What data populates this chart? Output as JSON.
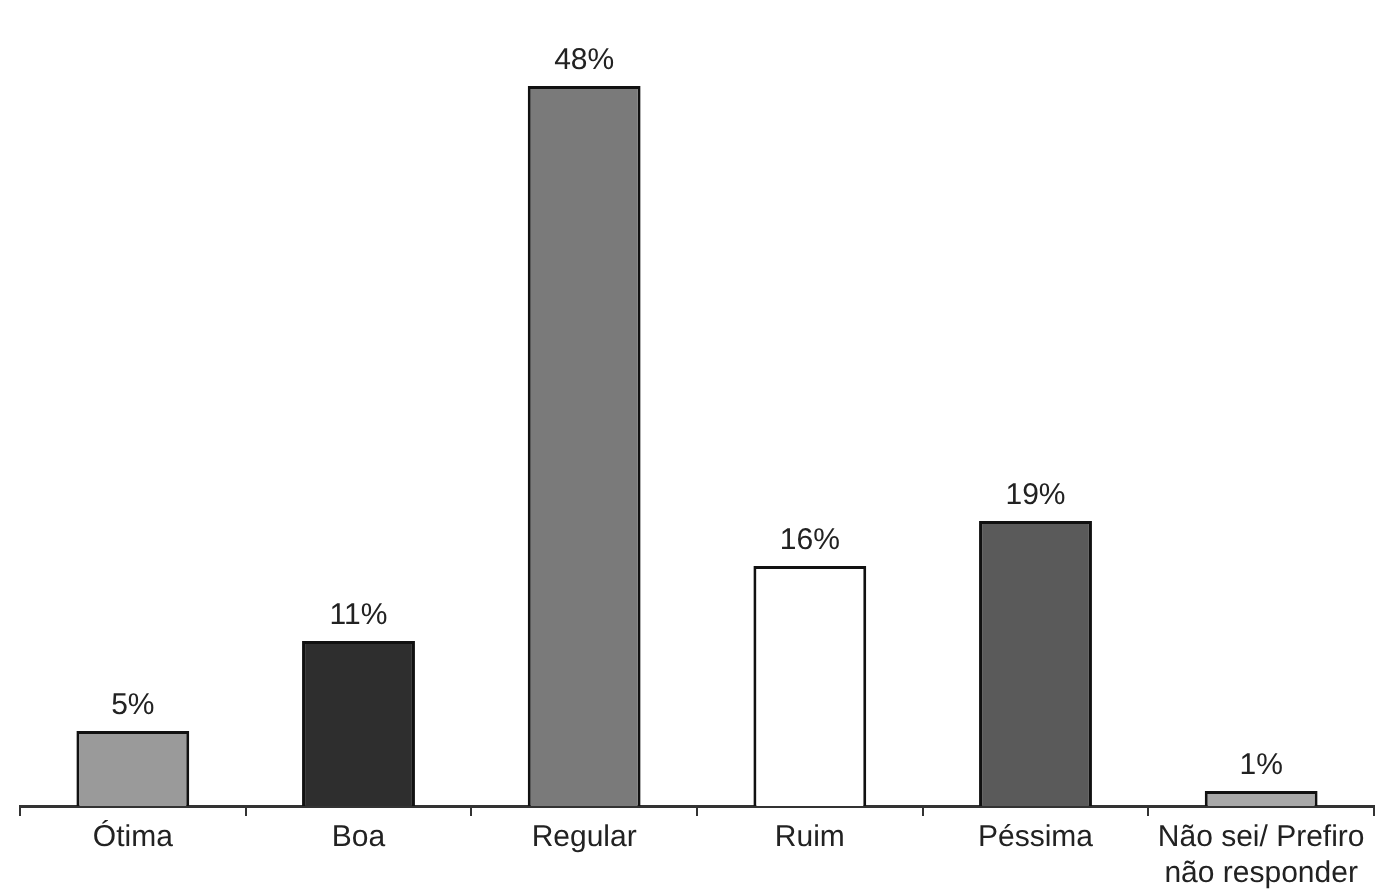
{
  "chart_data": {
    "type": "bar",
    "categories": [
      "Ótima",
      "Boa",
      "Regular",
      "Ruim",
      "Péssima",
      "Não sei/ Prefiro não responder"
    ],
    "values": [
      5,
      11,
      48,
      16,
      19,
      1
    ],
    "value_labels": [
      "5%",
      "11%",
      "48%",
      "16%",
      "19%",
      "1%"
    ],
    "colors": [
      "#9a9a9a",
      "#2e2e2e",
      "#7a7a7a",
      "#ffffff",
      "#5a5a5a",
      "#a8a8a8"
    ],
    "grid": false,
    "legend": false,
    "tick_labels": "x"
  }
}
